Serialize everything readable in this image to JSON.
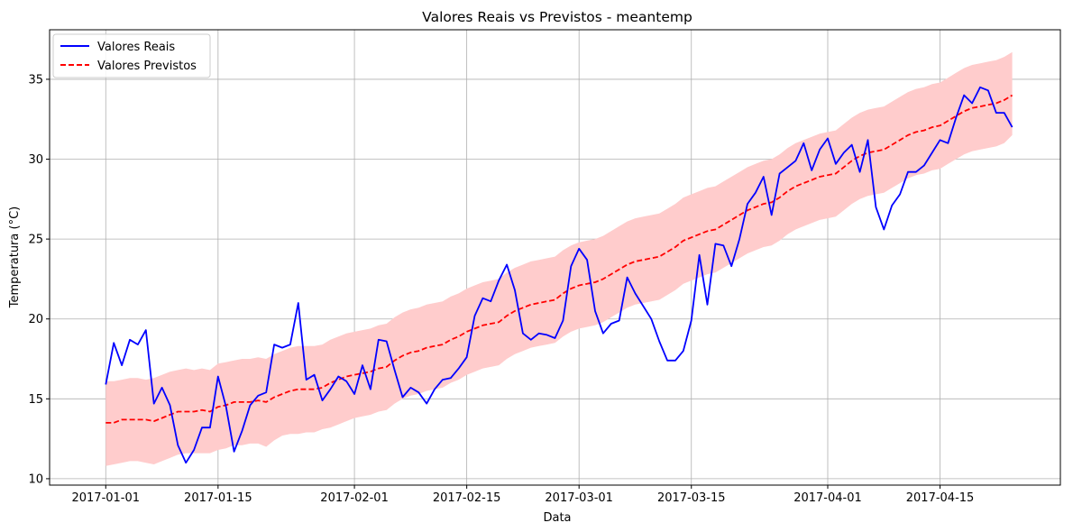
{
  "chart_data": {
    "type": "line",
    "title": "Valores Reais vs Previstos - meantemp",
    "xlabel": "Data",
    "ylabel": "Temperatura (°C)",
    "x_start": "2017-01-01",
    "x_ticks": [
      {
        "date": "2017-01-01",
        "label": "2017-01-01"
      },
      {
        "date": "2017-01-15",
        "label": "2017-01-15"
      },
      {
        "date": "2017-02-01",
        "label": "2017-02-01"
      },
      {
        "date": "2017-02-15",
        "label": "2017-02-15"
      },
      {
        "date": "2017-03-01",
        "label": "2017-03-01"
      },
      {
        "date": "2017-03-15",
        "label": "2017-03-15"
      },
      {
        "date": "2017-04-01",
        "label": "2017-04-01"
      },
      {
        "date": "2017-04-15",
        "label": "2017-04-15"
      }
    ],
    "y_ticks": [
      10,
      15,
      20,
      25,
      30,
      35
    ],
    "xlim": [
      "2016-12-25",
      "2017-04-30"
    ],
    "ylim": [
      9.6,
      38.1
    ],
    "grid": true,
    "legend_position": "top-left",
    "series": [
      {
        "name": "Valores Reais",
        "color": "#0000ff",
        "style": "solid",
        "values": [
          15.9,
          18.5,
          17.1,
          18.7,
          18.4,
          19.3,
          14.7,
          15.7,
          14.6,
          12.1,
          11.0,
          11.8,
          13.2,
          13.2,
          16.4,
          14.5,
          11.7,
          13.0,
          14.6,
          15.2,
          15.4,
          18.4,
          18.2,
          18.4,
          21.0,
          16.2,
          16.5,
          14.9,
          15.6,
          16.4,
          16.1,
          15.3,
          17.1,
          15.6,
          18.7,
          18.6,
          16.8,
          15.1,
          15.7,
          15.4,
          14.7,
          15.6,
          16.2,
          16.3,
          16.9,
          17.6,
          20.2,
          21.3,
          21.1,
          22.4,
          23.4,
          21.8,
          19.1,
          18.7,
          19.1,
          19.0,
          18.8,
          19.9,
          23.3,
          24.4,
          23.7,
          20.5,
          19.1,
          19.7,
          19.9,
          22.6,
          21.6,
          20.8,
          20.0,
          18.6,
          17.4,
          17.4,
          18.0,
          19.9,
          24.0,
          20.9,
          24.7,
          24.6,
          23.3,
          25.0,
          27.2,
          27.9,
          28.9,
          26.5,
          29.1,
          29.5,
          29.9,
          31.0,
          29.3,
          30.6,
          31.3,
          29.7,
          30.4,
          30.9,
          29.2,
          31.2,
          27.0,
          25.6,
          27.1,
          27.8,
          29.2,
          29.2,
          29.6,
          30.4,
          31.2,
          31.0,
          32.6,
          34.0,
          33.5,
          34.5,
          34.3,
          32.9,
          32.9,
          32.0
        ]
      },
      {
        "name": "Valores Previstos",
        "color": "#ff0000",
        "style": "dashed",
        "values": [
          13.5,
          13.5,
          13.7,
          13.7,
          13.7,
          13.7,
          13.6,
          13.8,
          14.0,
          14.2,
          14.2,
          14.2,
          14.3,
          14.2,
          14.5,
          14.6,
          14.8,
          14.8,
          14.8,
          14.9,
          14.8,
          15.1,
          15.3,
          15.5,
          15.6,
          15.6,
          15.6,
          15.7,
          16.0,
          16.2,
          16.4,
          16.5,
          16.6,
          16.7,
          16.9,
          17.0,
          17.4,
          17.7,
          17.9,
          18.0,
          18.2,
          18.3,
          18.4,
          18.7,
          18.9,
          19.2,
          19.4,
          19.6,
          19.7,
          19.8,
          20.2,
          20.5,
          20.7,
          20.9,
          21.0,
          21.1,
          21.2,
          21.6,
          21.9,
          22.1,
          22.2,
          22.3,
          22.5,
          22.8,
          23.1,
          23.4,
          23.6,
          23.7,
          23.8,
          23.9,
          24.2,
          24.5,
          24.9,
          25.1,
          25.3,
          25.5,
          25.6,
          25.9,
          26.2,
          26.5,
          26.8,
          27.0,
          27.2,
          27.3,
          27.6,
          28.0,
          28.3,
          28.5,
          28.7,
          28.9,
          29.0,
          29.1,
          29.5,
          29.9,
          30.2,
          30.4,
          30.5,
          30.6,
          30.9,
          31.2,
          31.5,
          31.7,
          31.8,
          32.0,
          32.1,
          32.4,
          32.7,
          33.0,
          33.2,
          33.3,
          33.4,
          33.5,
          33.7,
          34.0
        ]
      }
    ],
    "band": {
      "color": "#ffcccc",
      "lower": [
        10.8,
        10.9,
        11.0,
        11.1,
        11.1,
        11.0,
        10.9,
        11.1,
        11.3,
        11.5,
        11.6,
        11.6,
        11.6,
        11.6,
        11.8,
        11.9,
        12.1,
        12.1,
        12.2,
        12.2,
        12.0,
        12.4,
        12.7,
        12.8,
        12.8,
        12.9,
        12.9,
        13.1,
        13.2,
        13.4,
        13.6,
        13.8,
        13.9,
        14.0,
        14.2,
        14.3,
        14.7,
        15.0,
        15.2,
        15.3,
        15.5,
        15.6,
        15.7,
        16.0,
        16.2,
        16.5,
        16.7,
        16.9,
        17.0,
        17.1,
        17.5,
        17.8,
        18.0,
        18.2,
        18.3,
        18.4,
        18.5,
        18.9,
        19.2,
        19.4,
        19.5,
        19.6,
        19.8,
        20.1,
        20.4,
        20.7,
        20.9,
        21.0,
        21.1,
        21.2,
        21.5,
        21.8,
        22.2,
        22.4,
        22.6,
        22.8,
        22.9,
        23.2,
        23.5,
        23.8,
        24.1,
        24.3,
        24.5,
        24.6,
        24.9,
        25.3,
        25.6,
        25.8,
        26.0,
        26.2,
        26.3,
        26.4,
        26.8,
        27.2,
        27.5,
        27.7,
        27.8,
        27.9,
        28.2,
        28.5,
        28.8,
        29.0,
        29.1,
        29.3,
        29.4,
        29.7,
        30.0,
        30.3,
        30.5,
        30.6,
        30.7,
        30.8,
        31.0,
        31.5
      ],
      "upper": [
        16.1,
        16.1,
        16.2,
        16.3,
        16.3,
        16.2,
        16.3,
        16.5,
        16.7,
        16.8,
        16.9,
        16.8,
        16.9,
        16.8,
        17.2,
        17.3,
        17.4,
        17.5,
        17.5,
        17.6,
        17.5,
        17.8,
        18.0,
        18.2,
        18.3,
        18.3,
        18.3,
        18.4,
        18.7,
        18.9,
        19.1,
        19.2,
        19.3,
        19.4,
        19.6,
        19.7,
        20.1,
        20.4,
        20.6,
        20.7,
        20.9,
        21.0,
        21.1,
        21.4,
        21.6,
        21.9,
        22.1,
        22.3,
        22.4,
        22.5,
        22.9,
        23.2,
        23.4,
        23.6,
        23.7,
        23.8,
        23.9,
        24.3,
        24.6,
        24.8,
        24.9,
        25.0,
        25.2,
        25.5,
        25.8,
        26.1,
        26.3,
        26.4,
        26.5,
        26.6,
        26.9,
        27.2,
        27.6,
        27.8,
        28.0,
        28.2,
        28.3,
        28.6,
        28.9,
        29.2,
        29.5,
        29.7,
        29.9,
        30.0,
        30.3,
        30.7,
        31.0,
        31.2,
        31.4,
        31.6,
        31.7,
        31.8,
        32.2,
        32.6,
        32.9,
        33.1,
        33.2,
        33.3,
        33.6,
        33.9,
        34.2,
        34.4,
        34.5,
        34.7,
        34.8,
        35.1,
        35.4,
        35.7,
        35.9,
        36.0,
        36.1,
        36.2,
        36.4,
        36.7
      ]
    }
  }
}
